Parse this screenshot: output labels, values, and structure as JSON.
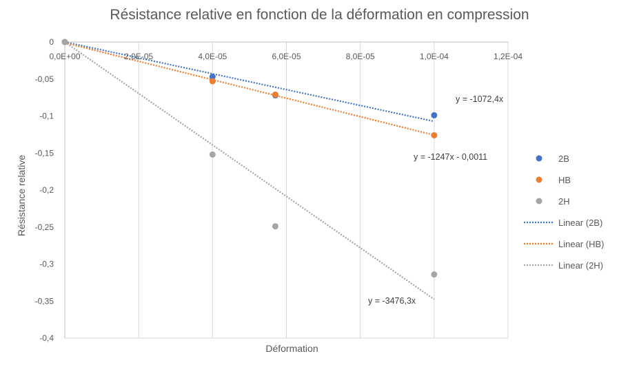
{
  "chart_data": {
    "type": "scatter",
    "title": "Résistance relative en fonction de la déformation en compression",
    "xlabel": "Déformation",
    "ylabel": "Résistance relative",
    "xlim": [
      0,
      0.00012
    ],
    "ylim": [
      -0.4,
      0
    ],
    "x_ticks": [
      0,
      2e-05,
      4e-05,
      6e-05,
      8e-05,
      0.0001,
      0.00012
    ],
    "x_tick_labels": [
      "0,0E+00",
      "2,0E-05",
      "4,0E-05",
      "6,0E-05",
      "8,0E-05",
      "1,0E-04",
      "1,2E-04"
    ],
    "y_ticks": [
      0,
      -0.05,
      -0.1,
      -0.15,
      -0.2,
      -0.25,
      -0.3,
      -0.35,
      -0.4
    ],
    "y_tick_labels": [
      "0",
      "-0,05",
      "-0,1",
      "-0,15",
      "-0,2",
      "-0,25",
      "-0,3",
      "-0,35",
      "-0,4"
    ],
    "grid": "vertical",
    "legend_position": "right",
    "series": [
      {
        "name": "2B",
        "color": "#4472C4",
        "x": [
          0,
          4e-05,
          5.7e-05,
          0.0001
        ],
        "y": [
          0,
          -0.047,
          -0.072,
          -0.099
        ],
        "trendline": {
          "name": "Linear (2B)",
          "slope": -1072.4,
          "intercept": 0,
          "label": "y = -1072,4x"
        }
      },
      {
        "name": "HB",
        "color": "#ED7D31",
        "x": [
          0,
          4e-05,
          5.7e-05,
          0.0001
        ],
        "y": [
          0,
          -0.053,
          -0.071,
          -0.126
        ],
        "trendline": {
          "name": "Linear (HB)",
          "slope": -1247,
          "intercept": -0.0011,
          "label": "y = -1247x - 0,0011"
        }
      },
      {
        "name": "2H",
        "color": "#A5A5A5",
        "x": [
          0,
          4e-05,
          5.7e-05,
          0.0001
        ],
        "y": [
          0,
          -0.152,
          -0.249,
          -0.314
        ],
        "trendline": {
          "name": "Linear (2H)",
          "slope": -3476.3,
          "intercept": 0,
          "label": "y = -3476,3x"
        }
      }
    ]
  }
}
